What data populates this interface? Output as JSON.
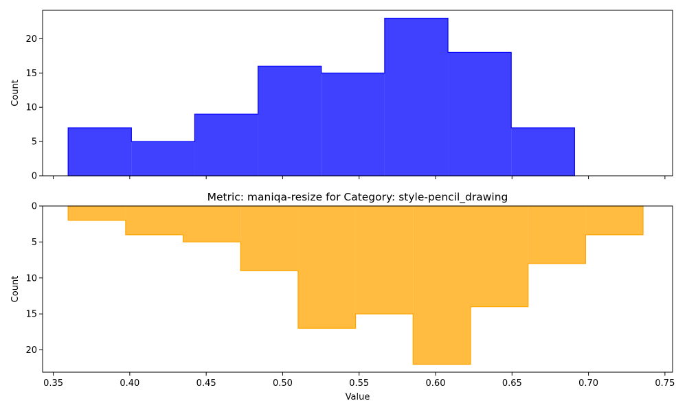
{
  "chart_data": [
    {
      "type": "histogram",
      "title": "",
      "xlabel": "",
      "ylabel": "Count",
      "xlim": [
        0.343,
        0.755
      ],
      "ylim": [
        0,
        24.15
      ],
      "x_ticks": [
        0.35,
        0.4,
        0.45,
        0.5,
        0.55,
        0.6,
        0.65,
        0.7,
        0.75
      ],
      "x_tick_labels_visible": false,
      "y_ticks": [
        0,
        5,
        10,
        15,
        20
      ],
      "y_inverted": false,
      "color": "#0000ff",
      "bin_edges": [
        0.3597,
        0.4011,
        0.4425,
        0.4839,
        0.5253,
        0.5667,
        0.6081,
        0.6495,
        0.6909
      ],
      "counts": [
        7,
        5,
        9,
        16,
        15,
        23,
        18,
        7
      ]
    },
    {
      "type": "histogram",
      "title": "Metric: maniqa-resize for Category: style-pencil_drawing",
      "xlabel": "Value",
      "ylabel": "Count",
      "xlim": [
        0.343,
        0.755
      ],
      "ylim": [
        0,
        23.1
      ],
      "x_ticks": [
        0.35,
        0.4,
        0.45,
        0.5,
        0.55,
        0.6,
        0.65,
        0.7,
        0.75
      ],
      "x_tick_labels": [
        "0.35",
        "0.40",
        "0.45",
        "0.50",
        "0.55",
        "0.60",
        "0.65",
        "0.70",
        "0.75"
      ],
      "y_ticks": [
        0,
        5,
        10,
        15,
        20
      ],
      "y_inverted": true,
      "color": "#ffa500",
      "bin_edges": [
        0.3597,
        0.3973,
        0.4349,
        0.4725,
        0.5101,
        0.5477,
        0.5853,
        0.6229,
        0.6605,
        0.6981,
        0.7357
      ],
      "counts": [
        2,
        4,
        5,
        9,
        17,
        15,
        22,
        14,
        8,
        4
      ]
    }
  ]
}
